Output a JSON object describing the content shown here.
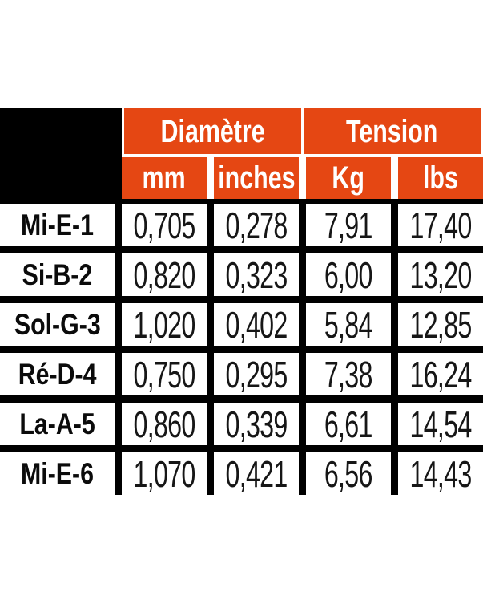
{
  "colors": {
    "accent_orange": "#e54713",
    "grid_black": "#000000",
    "header_text": "#ffffff",
    "body_text": "#161616",
    "background": "#ffffff"
  },
  "chart_data": {
    "type": "table",
    "title": "",
    "column_groups": [
      {
        "label": "Diamètre",
        "columns": [
          "mm",
          "inches"
        ]
      },
      {
        "label": "Tension",
        "columns": [
          "Kg",
          "lbs"
        ]
      }
    ],
    "columns": [
      "mm",
      "inches",
      "Kg",
      "lbs"
    ],
    "rows": [
      {
        "label": "Mi-E-1",
        "values": [
          "0,705",
          "0,278",
          "7,91",
          "17,40"
        ]
      },
      {
        "label": "Si-B-2",
        "values": [
          "0,820",
          "0,323",
          "6,00",
          "13,20"
        ]
      },
      {
        "label": "Sol-G-3",
        "values": [
          "1,020",
          "0,402",
          "5,84",
          "12,85"
        ]
      },
      {
        "label": "Ré-D-4",
        "values": [
          "0,750",
          "0,295",
          "7,38",
          "16,24"
        ]
      },
      {
        "label": "La-A-5",
        "values": [
          "0,860",
          "0,339",
          "6,61",
          "14,54"
        ]
      },
      {
        "label": "Mi-E-6",
        "values": [
          "1,070",
          "0,421",
          "6,56",
          "14,43"
        ]
      }
    ]
  }
}
